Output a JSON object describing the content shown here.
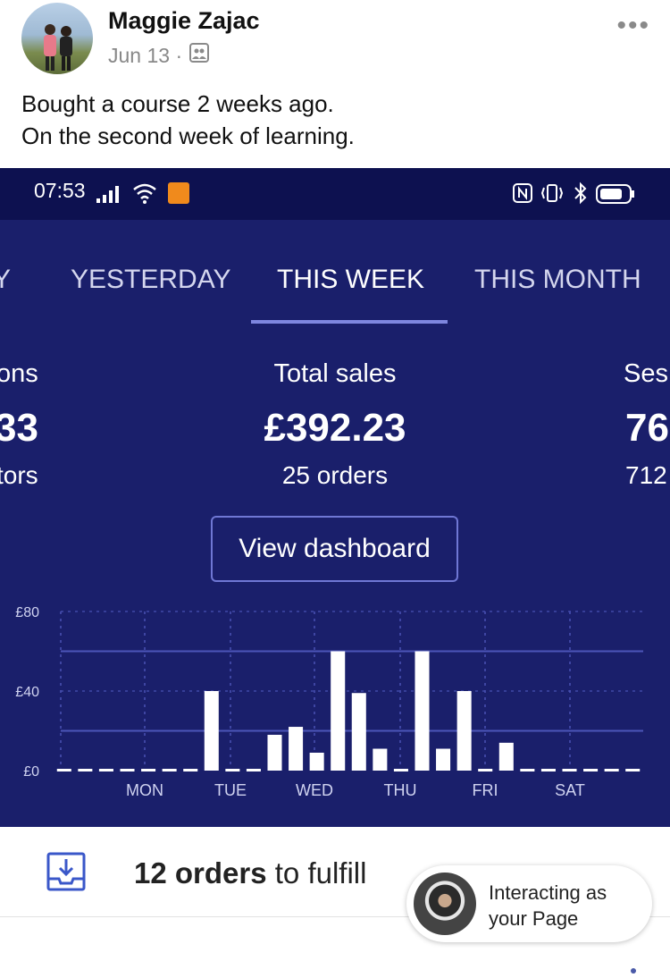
{
  "post": {
    "author": "Maggie Zajac",
    "date": "Jun 13 ·",
    "more_label": "•••",
    "lines": [
      "Bought a course 2 weeks ago.",
      "On the second week of learning."
    ]
  },
  "status_bar": {
    "time": "07:53"
  },
  "tabs": [
    {
      "label": "Y"
    },
    {
      "label": "YESTERDAY"
    },
    {
      "label": "THIS WEEK",
      "active": true
    },
    {
      "label": "THIS MONTH"
    }
  ],
  "stats": {
    "left": {
      "label": "ons",
      "value": "33",
      "sub": "tors"
    },
    "center": {
      "label": "Total sales",
      "value": "£392.23",
      "sub": "25 orders"
    },
    "right": {
      "label": "Ses",
      "value": "76",
      "sub": "712"
    }
  },
  "dashboard_button": "View dashboard",
  "chart_data": {
    "type": "bar",
    "y_ticks": [
      "£80",
      "£40",
      "£0"
    ],
    "ylim": [
      0,
      80
    ],
    "x_labels": [
      "MON",
      "TUE",
      "WED",
      "THU",
      "FRI",
      "SAT"
    ],
    "values": [
      0,
      0,
      0,
      0,
      0,
      0,
      0,
      40,
      0,
      0,
      18,
      22,
      9,
      60,
      39,
      11,
      0,
      60,
      11,
      40,
      0,
      14,
      0,
      0,
      0,
      0,
      0,
      0
    ],
    "grid": true
  },
  "fulfill": {
    "count": "12 orders",
    "suffix": " to fulfill"
  },
  "interacting": {
    "line1": "Interacting as",
    "line2": "your Page"
  }
}
